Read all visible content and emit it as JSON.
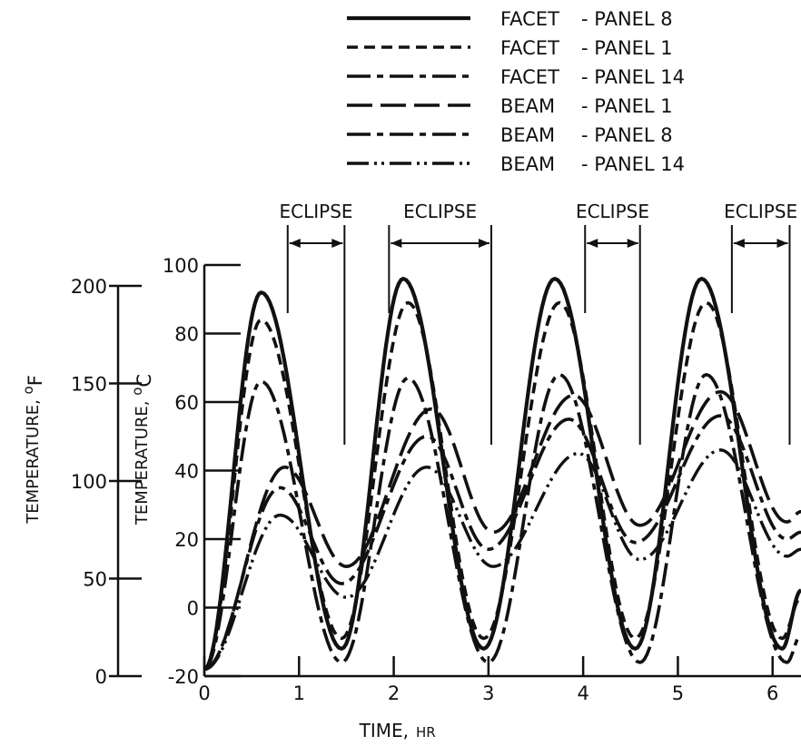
{
  "chart_data": {
    "type": "line",
    "xlabel": "TIME,",
    "xlabel_unit": "HR",
    "ylabel_c": "TEMPERATURE,",
    "ylabel_c_unit": "C",
    "ylabel_f": "TEMPERATURE,",
    "ylabel_f_unit": "F",
    "degree_symbol": "o",
    "xlim": [
      0,
      6.3
    ],
    "ylim": [
      -20,
      100
    ],
    "x_ticks": [
      0,
      1,
      2,
      3,
      4,
      5,
      6
    ],
    "x_tick_labels": [
      "0",
      "1",
      "2",
      "3",
      "4",
      "5",
      "6"
    ],
    "y_ticks": [
      -20,
      0,
      20,
      40,
      60,
      80,
      100
    ],
    "y_tick_labels": [
      "-20",
      "0",
      "20",
      "40",
      "60",
      "80",
      "100"
    ],
    "f_ticks": [
      0,
      50,
      100,
      150,
      200
    ],
    "f_tick_labels": [
      "0",
      "50",
      "100",
      "150",
      "200"
    ],
    "grid": false,
    "legend_position": "top",
    "eclipse_label": "ECLIPSE",
    "eclipses": [
      [
        0.88,
        1.48
      ],
      [
        1.95,
        3.03
      ],
      [
        4.02,
        4.6
      ],
      [
        5.57,
        6.18
      ]
    ],
    "series": [
      {
        "name": "FACET - PANEL 8",
        "dash": "solid",
        "width": 4.2,
        "x": [
          0,
          0.6,
          1.45,
          2.1,
          2.95,
          3.7,
          4.55,
          5.25,
          6.1,
          6.3
        ],
        "y": [
          -18,
          92,
          -12,
          96,
          -12,
          96,
          -12,
          96,
          -12,
          5
        ]
      },
      {
        "name": "FACET - PANEL 1",
        "dash": "short-dash",
        "width": 3.6,
        "x": [
          0,
          0.6,
          1.45,
          2.15,
          2.95,
          3.75,
          4.55,
          5.3,
          6.1,
          6.3
        ],
        "y": [
          -18,
          84,
          -9,
          89,
          -9,
          89,
          -9,
          89,
          -9,
          3
        ]
      },
      {
        "name": "FACET - PANEL 14",
        "dash": "long-short",
        "width": 3.6,
        "x": [
          0,
          0.6,
          1.45,
          2.15,
          3.0,
          3.75,
          4.6,
          5.3,
          6.15,
          6.3
        ],
        "y": [
          -18,
          66,
          -16,
          67,
          -16,
          68,
          -16,
          68,
          -16,
          -8
        ]
      },
      {
        "name": "BEAM - PANEL 1",
        "dash": "long-dash",
        "width": 3.6,
        "x": [
          0,
          0.85,
          1.5,
          2.4,
          3.05,
          3.9,
          4.6,
          5.45,
          6.15,
          6.3
        ],
        "y": [
          -18,
          41,
          12,
          58,
          22,
          62,
          24,
          63,
          25,
          28
        ]
      },
      {
        "name": "BEAM - PANEL 8",
        "dash": "long-short",
        "width": 3.6,
        "x": [
          0,
          0.8,
          1.45,
          2.35,
          3.0,
          3.85,
          4.55,
          5.45,
          6.15,
          6.3
        ],
        "y": [
          -18,
          35,
          7,
          50,
          17,
          55,
          19,
          56,
          20,
          22
        ]
      },
      {
        "name": "BEAM - PANEL 14",
        "dash": "long-dot-dot",
        "width": 3.4,
        "x": [
          0,
          0.8,
          1.5,
          2.35,
          3.05,
          3.95,
          4.6,
          5.45,
          6.15,
          6.3
        ],
        "y": [
          -18,
          27,
          3,
          41,
          12,
          45,
          14,
          46,
          15,
          17
        ]
      }
    ]
  }
}
